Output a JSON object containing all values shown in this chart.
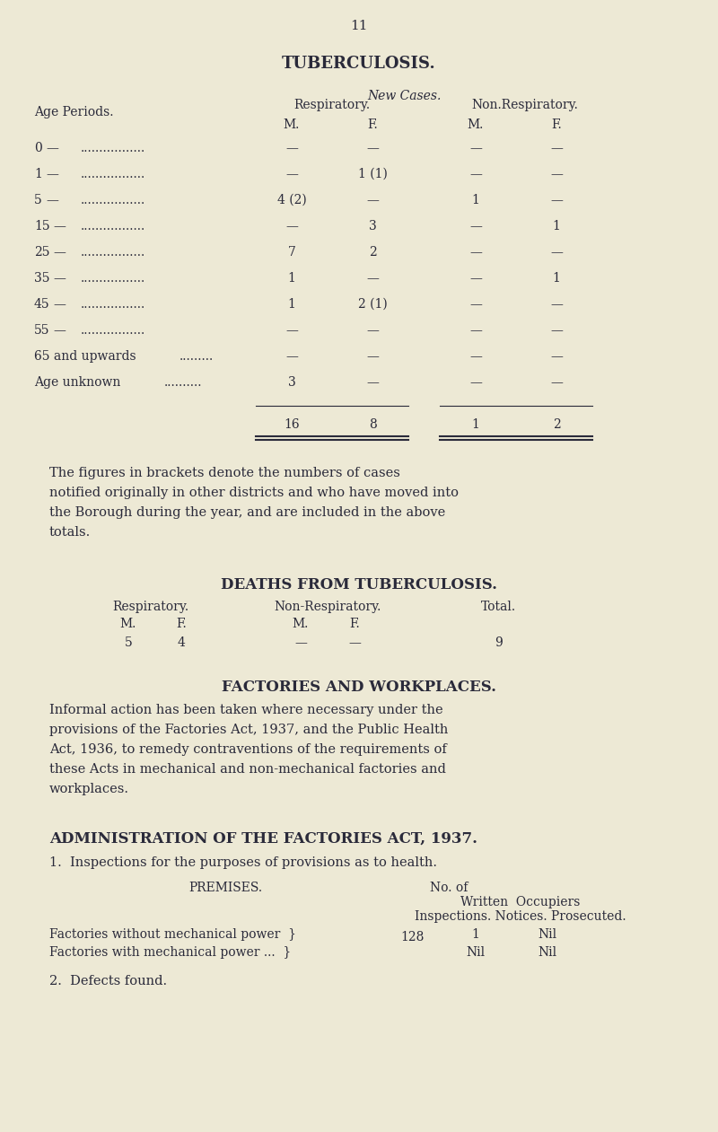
{
  "bg_color": "#ede9d5",
  "text_color": "#2a2a3a",
  "page_number": "11",
  "title1": "TUBERCULOSIS.",
  "subtitle1": "New Cases.",
  "age_rows": [
    {
      "label": "0",
      "resp_m": "—",
      "resp_f": "—",
      "nonresp_m": "—",
      "nonresp_f": "—"
    },
    {
      "label": "1",
      "resp_m": "—",
      "resp_f": "1 (1)",
      "nonresp_m": "—",
      "nonresp_f": "—"
    },
    {
      "label": "5",
      "resp_m": "4 (2)",
      "resp_f": "—",
      "nonresp_m": "1",
      "nonresp_f": "—"
    },
    {
      "label": "15",
      "resp_m": "—",
      "resp_f": "3",
      "nonresp_m": "—",
      "nonresp_f": "1"
    },
    {
      "label": "25",
      "resp_m": "7",
      "resp_f": "2",
      "nonresp_m": "—",
      "nonresp_f": "—"
    },
    {
      "label": "35",
      "resp_m": "1",
      "resp_f": "—",
      "nonresp_m": "—",
      "nonresp_f": "1"
    },
    {
      "label": "45",
      "resp_m": "1",
      "resp_f": "2 (1)",
      "nonresp_m": "—",
      "nonresp_f": "—"
    },
    {
      "label": "55",
      "resp_m": "—",
      "resp_f": "—",
      "nonresp_m": "—",
      "nonresp_f": "—"
    },
    {
      "label": "65 and upwards",
      "resp_m": "—",
      "resp_f": "—",
      "nonresp_m": "—",
      "nonresp_f": "—"
    },
    {
      "label": "Age unknown",
      "resp_m": "3",
      "resp_f": "—",
      "nonresp_m": "—",
      "nonresp_f": "—"
    }
  ],
  "totals": {
    "resp_m": "16",
    "resp_f": "8",
    "nonresp_m": "1",
    "nonresp_f": "2"
  },
  "footnote_lines": [
    "The figures in brackets denote the numbers of cases",
    "notified originally in other districts and who have moved into",
    "the Borough during the year, and are included in the above",
    "totals."
  ],
  "deaths_title": "DEATHS FROM TUBERCULOSIS.",
  "factories_title": "FACTORIES AND WORKPLACES.",
  "factories_text_lines": [
    "Informal action has been taken where necessary under the",
    "provisions of the Factories Act, 1937, and the Public Health",
    "Act, 1936, to remedy contraventions of the requirements of",
    "these Acts in mechanical and non-mechanical factories and",
    "workplaces."
  ],
  "admin_title": "ADMINISTRATION OF THE FACTORIES ACT, 1937.",
  "admin_item1": "1.  Inspections for the purposes of provisions as to health.",
  "defects_label": "2.  Defects found."
}
